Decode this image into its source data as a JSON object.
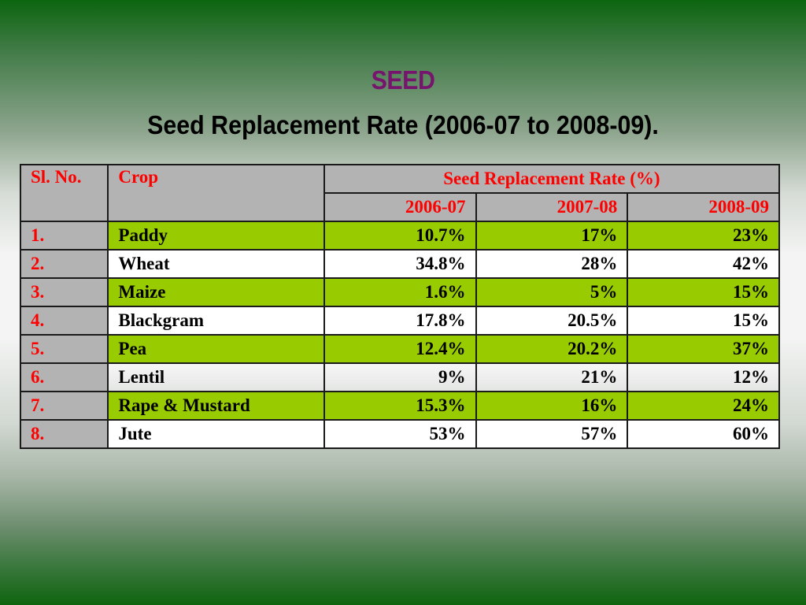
{
  "slide": {
    "title": "SEED",
    "subtitle": "Seed Replacement Rate (2006-07 to 2008-09).",
    "colors": {
      "title": "#76146e",
      "header_text": "#ff0000",
      "header_bg": "#b3b3b3",
      "green_row": "#99cc00",
      "white_row": "#ffffff",
      "bg_edge": "#0c650f"
    }
  },
  "table": {
    "headers": {
      "sl_no": "Sl. No.",
      "crop": "Crop",
      "group": "Seed Replacement Rate (%)",
      "years": [
        "2006-07",
        "2007-08",
        "2008-09"
      ]
    },
    "rows": [
      {
        "sl": "1.",
        "crop": "Paddy",
        "v2006_07": "10.7%",
        "v2007_08": "17%",
        "v2008_09": "23%",
        "style": "green"
      },
      {
        "sl": "2.",
        "crop": "Wheat",
        "v2006_07": "34.8%",
        "v2007_08": "28%",
        "v2008_09": "42%",
        "style": "white"
      },
      {
        "sl": "3.",
        "crop": "Maize",
        "v2006_07": "1.6%",
        "v2007_08": "5%",
        "v2008_09": "15%",
        "style": "green"
      },
      {
        "sl": "4.",
        "crop": "Blackgram",
        "v2006_07": "17.8%",
        "v2007_08": "20.5%",
        "v2008_09": "15%",
        "style": "white"
      },
      {
        "sl": "5.",
        "crop": "Pea",
        "v2006_07": "12.4%",
        "v2007_08": "20.2%",
        "v2008_09": "37%",
        "style": "green"
      },
      {
        "sl": "6.",
        "crop": "Lentil",
        "v2006_07": "9%",
        "v2007_08": "21%",
        "v2008_09": "12%",
        "style": "lightgray"
      },
      {
        "sl": "7.",
        "crop": "Rape & Mustard",
        "v2006_07": "15.3%",
        "v2007_08": "16%",
        "v2008_09": "24%",
        "style": "green"
      },
      {
        "sl": "8.",
        "crop": "Jute",
        "v2006_07": "53%",
        "v2007_08": "57%",
        "v2008_09": "60%",
        "style": "white"
      }
    ]
  }
}
